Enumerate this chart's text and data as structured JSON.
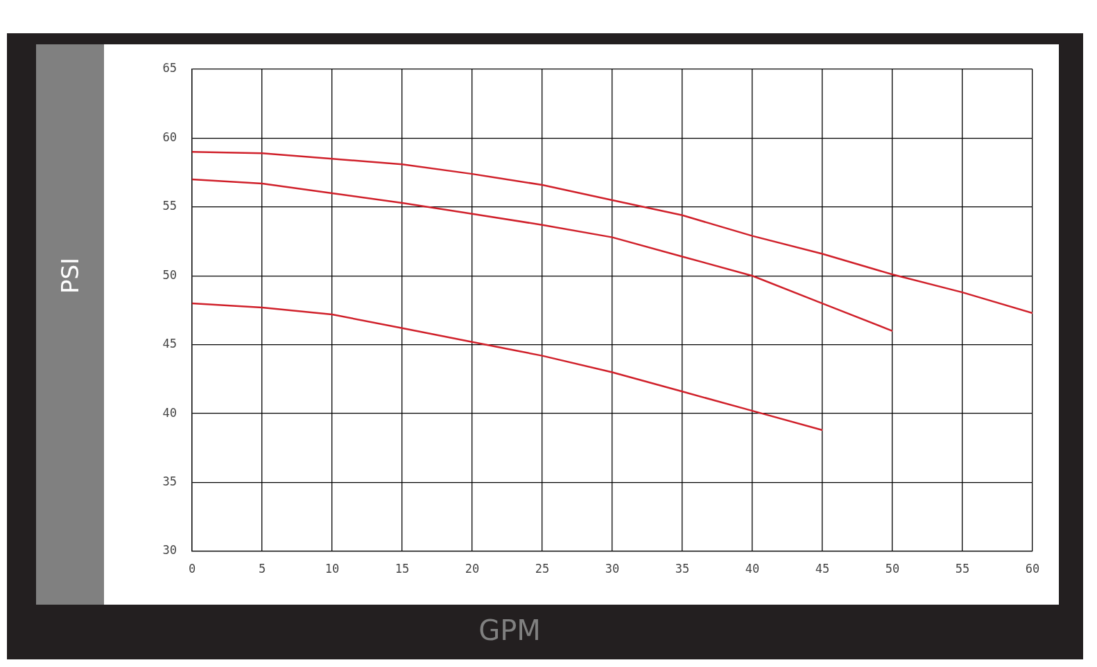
{
  "chart_data": {
    "type": "line",
    "xlabel": "GPM",
    "ylabel": "PSI",
    "xlim": [
      0,
      60
    ],
    "xticks": [
      0,
      5,
      10,
      15,
      20,
      25,
      30,
      35,
      40,
      45,
      50,
      55,
      60
    ],
    "ylim": [
      30,
      65
    ],
    "yticks": [
      30,
      35,
      40,
      45,
      50,
      55,
      60,
      65
    ],
    "grid": true,
    "legend": false,
    "marker": "none",
    "line_style": "solid",
    "x": [
      0,
      5,
      10,
      15,
      20,
      25,
      30,
      35,
      40,
      45,
      50,
      55,
      60
    ],
    "series": [
      {
        "color": "#d0202a",
        "values": [
          59,
          58.9,
          58.5,
          58.1,
          57.4,
          56.6,
          55.5,
          54.4,
          52.9,
          51.6,
          50.1,
          48.8,
          47.3
        ]
      },
      {
        "color": "#d0202a",
        "values": [
          57,
          56.7,
          56,
          55.3,
          54.5,
          53.7,
          52.8,
          51.4,
          50,
          48,
          46,
          null,
          null
        ]
      },
      {
        "color": "#d0202a",
        "values": [
          48,
          47.7,
          47.2,
          46.2,
          45.2,
          44.2,
          43,
          41.6,
          40.2,
          38.8,
          null,
          null,
          null
        ]
      }
    ]
  }
}
